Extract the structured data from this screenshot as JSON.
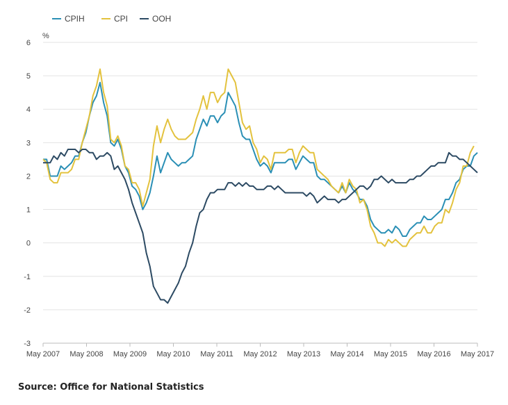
{
  "chart_data": {
    "type": "line",
    "title": "",
    "ylabel": "%",
    "xlabel": "",
    "ylim": [
      -3,
      6
    ],
    "yticks": [
      -3,
      -2,
      -1,
      0,
      1,
      2,
      3,
      4,
      5,
      6
    ],
    "grid": "horizontal",
    "legend": "top-left",
    "x_tick_labels": [
      "May 2007",
      "May 2008",
      "May 2009",
      "May 2010",
      "May 2011",
      "May 2012",
      "May 2013",
      "May 2014",
      "May 2015",
      "May 2016",
      "May 2017"
    ],
    "x_start": "May 2007",
    "x_end": "May 2017",
    "frequency": "monthly",
    "series": [
      {
        "name": "CPIH",
        "color": "#2a8fb5",
        "values": [
          2.5,
          2.5,
          2.0,
          2.0,
          2.0,
          2.3,
          2.2,
          2.3,
          2.4,
          2.6,
          2.6,
          3.0,
          3.3,
          3.8,
          4.2,
          4.4,
          4.8,
          4.2,
          3.8,
          3.0,
          2.9,
          3.1,
          2.8,
          2.3,
          2.1,
          1.7,
          1.6,
          1.4,
          1.0,
          1.2,
          1.5,
          2.0,
          2.6,
          2.1,
          2.4,
          2.7,
          2.5,
          2.4,
          2.3,
          2.4,
          2.4,
          2.5,
          2.6,
          3.1,
          3.4,
          3.7,
          3.5,
          3.8,
          3.8,
          3.6,
          3.8,
          3.9,
          4.5,
          4.3,
          4.1,
          3.6,
          3.2,
          3.1,
          3.1,
          2.8,
          2.5,
          2.3,
          2.4,
          2.3,
          2.1,
          2.4,
          2.4,
          2.4,
          2.4,
          2.5,
          2.5,
          2.2,
          2.4,
          2.6,
          2.5,
          2.4,
          2.4,
          2.0,
          1.9,
          1.9,
          1.8,
          1.7,
          1.6,
          1.5,
          1.7,
          1.5,
          1.8,
          1.6,
          1.5,
          1.3,
          1.3,
          1.1,
          0.7,
          0.5,
          0.4,
          0.3,
          0.3,
          0.4,
          0.3,
          0.5,
          0.4,
          0.2,
          0.2,
          0.4,
          0.5,
          0.6,
          0.6,
          0.8,
          0.7,
          0.7,
          0.8,
          0.9,
          1.0,
          1.3,
          1.3,
          1.5,
          1.8,
          1.9,
          2.2,
          2.3,
          2.3,
          2.6,
          2.7
        ]
      },
      {
        "name": "CPI",
        "color": "#e3c23d",
        "values": [
          2.5,
          2.4,
          1.9,
          1.8,
          1.8,
          2.1,
          2.1,
          2.1,
          2.2,
          2.5,
          2.5,
          3.0,
          3.4,
          3.8,
          4.4,
          4.7,
          5.2,
          4.5,
          4.1,
          3.1,
          3.0,
          3.2,
          2.9,
          2.3,
          2.2,
          1.8,
          1.8,
          1.6,
          1.1,
          1.5,
          1.9,
          2.9,
          3.5,
          3.0,
          3.4,
          3.7,
          3.4,
          3.2,
          3.1,
          3.1,
          3.1,
          3.2,
          3.3,
          3.7,
          4.0,
          4.4,
          4.0,
          4.5,
          4.5,
          4.2,
          4.4,
          4.5,
          5.2,
          5.0,
          4.8,
          4.2,
          3.6,
          3.4,
          3.5,
          3.0,
          2.8,
          2.4,
          2.6,
          2.5,
          2.2,
          2.7,
          2.7,
          2.7,
          2.7,
          2.8,
          2.8,
          2.4,
          2.7,
          2.9,
          2.8,
          2.7,
          2.7,
          2.2,
          2.1,
          2.0,
          1.9,
          1.7,
          1.6,
          1.5,
          1.8,
          1.5,
          1.9,
          1.7,
          1.6,
          1.2,
          1.3,
          1.0,
          0.5,
          0.3,
          0.0,
          0.0,
          -0.1,
          0.1,
          0.0,
          0.1,
          0.0,
          -0.1,
          -0.1,
          0.1,
          0.2,
          0.3,
          0.3,
          0.5,
          0.3,
          0.3,
          0.5,
          0.6,
          0.6,
          1.0,
          0.9,
          1.2,
          1.6,
          1.8,
          2.3,
          2.3,
          2.7,
          2.9
        ]
      },
      {
        "name": "OOH",
        "color": "#2c4a63",
        "values": [
          2.4,
          2.4,
          2.4,
          2.6,
          2.5,
          2.7,
          2.6,
          2.8,
          2.8,
          2.8,
          2.7,
          2.8,
          2.8,
          2.7,
          2.7,
          2.5,
          2.6,
          2.6,
          2.7,
          2.6,
          2.2,
          2.3,
          2.1,
          1.9,
          1.6,
          1.2,
          0.9,
          0.6,
          0.3,
          -0.3,
          -0.7,
          -1.3,
          -1.5,
          -1.7,
          -1.7,
          -1.8,
          -1.6,
          -1.4,
          -1.2,
          -0.9,
          -0.7,
          -0.3,
          0.0,
          0.5,
          0.9,
          1.0,
          1.3,
          1.5,
          1.5,
          1.6,
          1.6,
          1.6,
          1.8,
          1.8,
          1.7,
          1.8,
          1.7,
          1.8,
          1.7,
          1.7,
          1.6,
          1.6,
          1.6,
          1.7,
          1.7,
          1.6,
          1.7,
          1.6,
          1.5,
          1.5,
          1.5,
          1.5,
          1.5,
          1.5,
          1.4,
          1.5,
          1.4,
          1.2,
          1.3,
          1.4,
          1.3,
          1.3,
          1.3,
          1.2,
          1.3,
          1.3,
          1.4,
          1.5,
          1.6,
          1.7,
          1.7,
          1.6,
          1.7,
          1.9,
          1.9,
          2.0,
          1.9,
          1.8,
          1.9,
          1.8,
          1.8,
          1.8,
          1.8,
          1.9,
          1.9,
          2.0,
          2.0,
          2.1,
          2.2,
          2.3,
          2.3,
          2.4,
          2.4,
          2.4,
          2.7,
          2.6,
          2.6,
          2.5,
          2.5,
          2.4,
          2.3,
          2.2,
          2.1
        ]
      }
    ]
  },
  "source": "Source: Office for National Statistics"
}
